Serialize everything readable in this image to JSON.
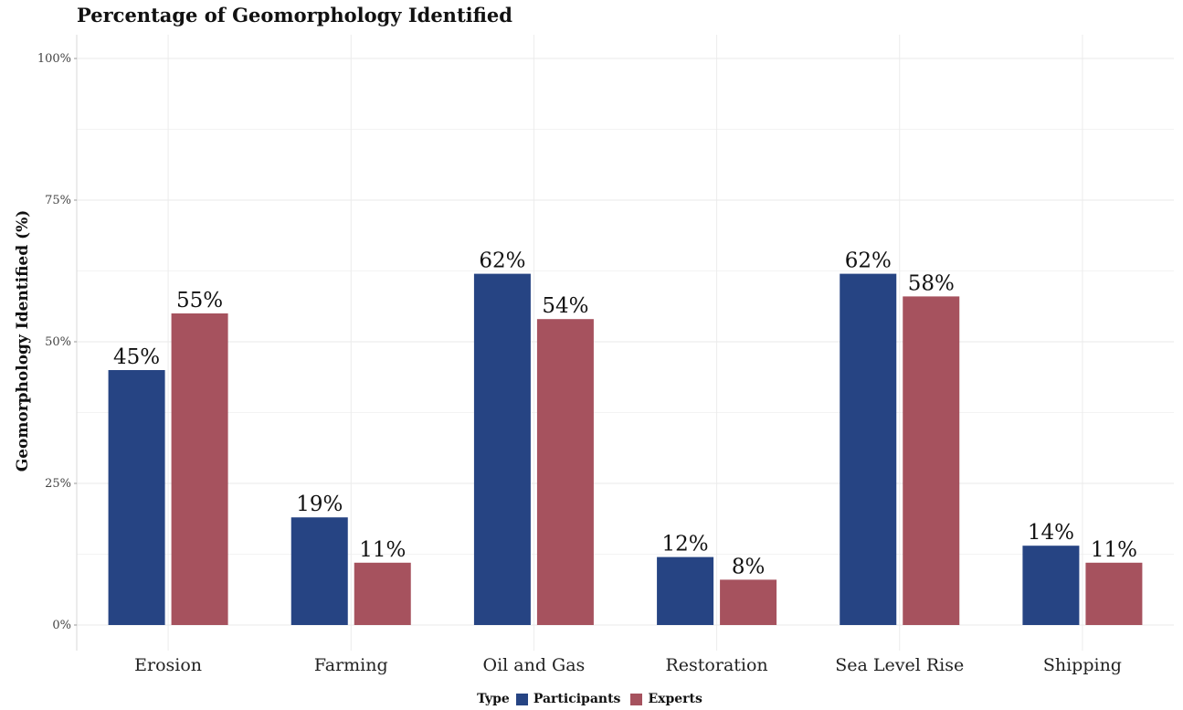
{
  "chart_data": {
    "type": "bar",
    "title": "Percentage of Geomorphology Identified",
    "ylabel": "Geomorphology Identified (%)",
    "xlabel": "",
    "categories": [
      "Erosion",
      "Farming",
      "Oil and Gas",
      "Restoration",
      "Sea Level Rise",
      "Shipping"
    ],
    "series": [
      {
        "name": "Participants",
        "color": "#264483",
        "values": [
          45,
          19,
          62,
          12,
          62,
          14
        ],
        "labels": [
          "45%",
          "19%",
          "62%",
          "12%",
          "62%",
          "14%"
        ]
      },
      {
        "name": "Experts",
        "color": "#A6525E",
        "values": [
          55,
          11,
          54,
          8,
          58,
          11
        ],
        "labels": [
          "55%",
          "11%",
          "54%",
          "8%",
          "58%",
          "11%"
        ]
      }
    ],
    "yticks": [
      0,
      25,
      50,
      75,
      100
    ],
    "yticklabels": [
      "0%",
      "25%",
      "50%",
      "75%",
      "100%"
    ],
    "ylim": [
      0,
      100
    ],
    "grid": true,
    "legend": {
      "title": "Type",
      "placement": "bottom"
    }
  }
}
